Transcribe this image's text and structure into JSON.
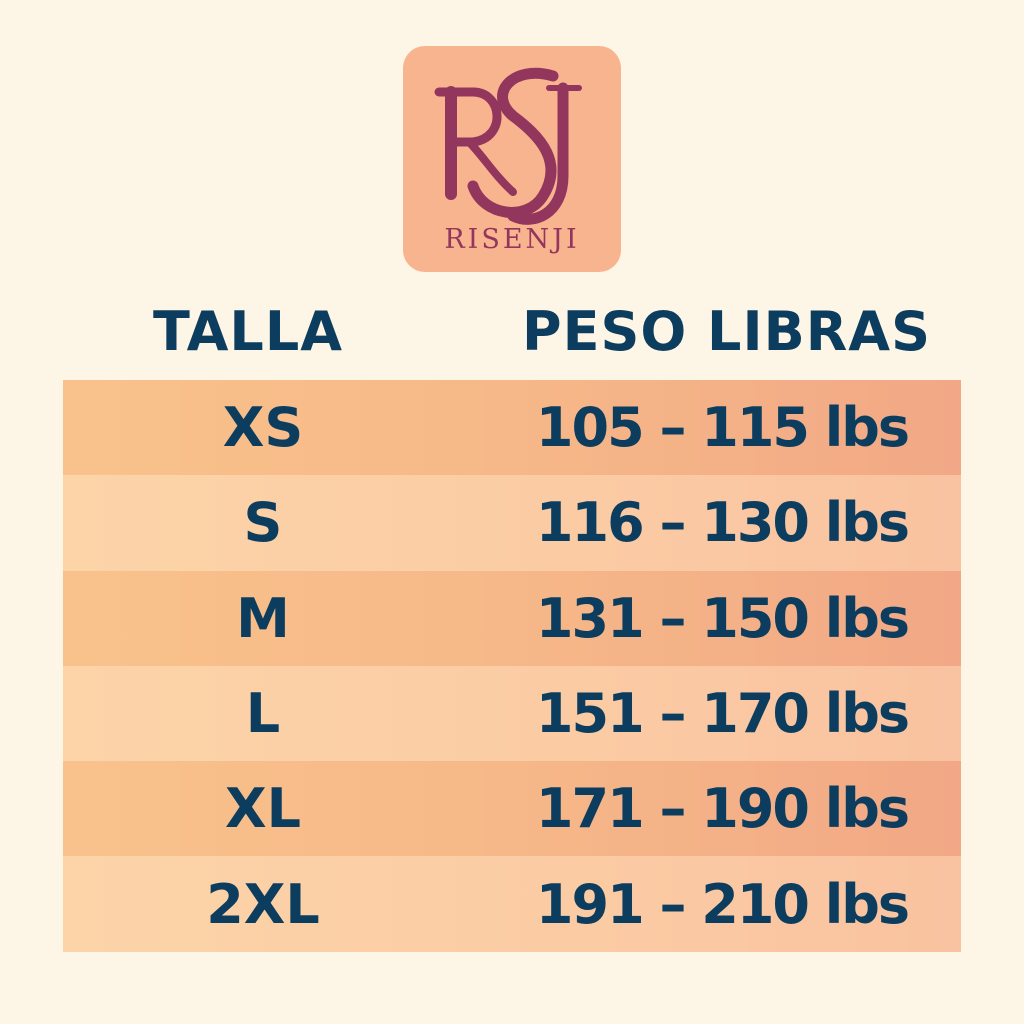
{
  "brand": {
    "name": "RISENJI",
    "monogram": "RSJ",
    "colors": {
      "badge": "#f8b48e",
      "ink": "#93365e"
    }
  },
  "headers": {
    "size": "TALLA",
    "weight": "PESO LIBRAS"
  },
  "rows": [
    {
      "size": "XS",
      "weight": "105 – 115 lbs"
    },
    {
      "size": "S",
      "weight": "116 – 130 lbs"
    },
    {
      "size": "M",
      "weight": "131 – 150 lbs"
    },
    {
      "size": "L",
      "weight": "151 – 170 lbs"
    },
    {
      "size": "XL",
      "weight": "171 – 190 lbs"
    },
    {
      "size": "2XL",
      "weight": "191 – 210 lbs"
    }
  ],
  "colors": {
    "text": "#0d3d5e",
    "background": "#fdf6e6"
  }
}
